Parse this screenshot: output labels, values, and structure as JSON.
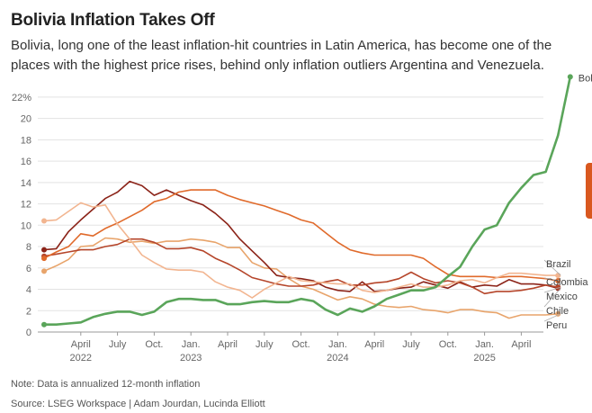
{
  "header": {
    "title": "Bolivia Inflation Takes Off",
    "subtitle": "Bolivia, long one of the least inflation-hit countries in Latin America, has become one of the places with the highest price rises, behind only inflation outliers Argentina and Venezuela."
  },
  "footer": {
    "note": "Note: Data is annualized 12-month inflation",
    "source": "Source: LSEG Workspace | Adam Jourdan, Lucinda Elliott"
  },
  "chart_data": {
    "type": "line",
    "title": "Bolivia Inflation Takes Off",
    "ylabel": "",
    "xlabel": "",
    "ylim": [
      0,
      23
    ],
    "yticks": [
      0,
      2,
      4,
      6,
      8,
      10,
      12,
      14,
      16,
      18,
      20,
      22
    ],
    "ytick_labels": [
      "0",
      "2",
      "4",
      "6",
      "8",
      "10",
      "12",
      "14",
      "16",
      "18",
      "20",
      "22%"
    ],
    "grid": true,
    "x_start": "2022-01",
    "xticks": [
      {
        "month": 3,
        "label": "April",
        "year": "2022"
      },
      {
        "month": 6,
        "label": "July",
        "year": ""
      },
      {
        "month": 9,
        "label": "Oct.",
        "year": ""
      },
      {
        "month": 12,
        "label": "Jan.",
        "year": "2023"
      },
      {
        "month": 15,
        "label": "April",
        "year": ""
      },
      {
        "month": 18,
        "label": "July",
        "year": ""
      },
      {
        "month": 21,
        "label": "Oct.",
        "year": ""
      },
      {
        "month": 24,
        "label": "Jan.",
        "year": "2024"
      },
      {
        "month": 27,
        "label": "April",
        "year": ""
      },
      {
        "month": 30,
        "label": "July",
        "year": ""
      },
      {
        "month": 33,
        "label": "Oct.",
        "year": ""
      },
      {
        "month": 36,
        "label": "Jan.",
        "year": "2025"
      },
      {
        "month": 39,
        "label": "April",
        "year": ""
      }
    ],
    "legend_placement": "right end of each line",
    "series": [
      {
        "name": "Peru",
        "color": "#e8a46b",
        "values": [
          5.7,
          6.2,
          6.8,
          8.0,
          8.1,
          8.8,
          8.7,
          8.4,
          8.5,
          8.3,
          8.5,
          8.5,
          8.7,
          8.6,
          8.4,
          7.9,
          7.9,
          6.5,
          6.0,
          5.9,
          5.0,
          4.3,
          4.0,
          3.5,
          3.0,
          3.3,
          3.1,
          2.6,
          2.4,
          2.3,
          2.4,
          2.1,
          2.0,
          1.8,
          2.1,
          2.1,
          1.9,
          1.8,
          1.3,
          1.6,
          1.6,
          1.6,
          1.7
        ]
      },
      {
        "name": "Chile",
        "color": "#8b2318",
        "values": [
          7.7,
          7.8,
          9.4,
          10.5,
          11.5,
          12.5,
          13.1,
          14.1,
          13.7,
          12.8,
          13.3,
          12.8,
          12.3,
          11.9,
          11.1,
          10.1,
          8.7,
          7.6,
          6.5,
          5.3,
          5.1,
          5.0,
          4.8,
          4.2,
          3.9,
          3.8,
          4.7,
          3.8,
          3.9,
          4.1,
          4.2,
          4.7,
          4.4,
          4.1,
          4.7,
          4.2,
          4.4,
          4.3,
          4.9,
          4.5,
          4.5,
          4.4,
          4.1
        ]
      },
      {
        "name": "Mexico",
        "color": "#b5452a",
        "values": [
          7.1,
          7.3,
          7.5,
          7.7,
          7.7,
          8.0,
          8.2,
          8.7,
          8.7,
          8.4,
          7.8,
          7.8,
          7.9,
          7.6,
          6.9,
          6.4,
          5.8,
          5.1,
          4.8,
          4.5,
          4.3,
          4.3,
          4.4,
          4.7,
          4.9,
          4.4,
          4.4,
          4.6,
          4.7,
          5.0,
          5.6,
          5.0,
          4.6,
          4.8,
          4.6,
          4.2,
          3.6,
          3.8,
          3.8,
          3.9,
          4.1,
          4.4,
          4.2
        ]
      },
      {
        "name": "Colombia",
        "color": "#e06a2b",
        "values": [
          6.9,
          7.5,
          8.0,
          9.2,
          9.0,
          9.7,
          10.2,
          10.8,
          11.4,
          12.2,
          12.5,
          13.1,
          13.3,
          13.3,
          13.3,
          12.8,
          12.4,
          12.1,
          11.8,
          11.4,
          11.0,
          10.5,
          10.2,
          9.3,
          8.4,
          7.7,
          7.4,
          7.2,
          7.2,
          7.2,
          7.2,
          6.9,
          6.1,
          5.4,
          5.2,
          5.2,
          5.2,
          5.1,
          5.2,
          5.2,
          5.1,
          5.0,
          4.8
        ]
      },
      {
        "name": "Brazil",
        "color": "#f2b590",
        "values": [
          10.4,
          10.5,
          11.3,
          12.1,
          11.7,
          11.9,
          10.1,
          8.7,
          7.2,
          6.5,
          5.9,
          5.8,
          5.8,
          5.6,
          4.7,
          4.2,
          3.9,
          3.2,
          4.0,
          4.6,
          5.2,
          4.8,
          4.7,
          4.6,
          4.5,
          4.5,
          3.9,
          3.7,
          3.9,
          4.2,
          4.5,
          4.2,
          4.2,
          4.4,
          4.8,
          4.9,
          4.6,
          5.1,
          5.5,
          5.5,
          5.4,
          5.3,
          5.3
        ]
      },
      {
        "name": "Bolivia",
        "color": "#5aa55a",
        "values": [
          0.7,
          0.7,
          0.8,
          0.9,
          1.4,
          1.7,
          1.9,
          1.9,
          1.6,
          1.9,
          2.8,
          3.1,
          3.1,
          3.0,
          3.0,
          2.6,
          2.6,
          2.8,
          2.9,
          2.8,
          2.8,
          3.1,
          2.9,
          2.1,
          1.6,
          2.2,
          1.9,
          2.4,
          3.1,
          3.5,
          3.9,
          3.9,
          4.2,
          5.2,
          6.1,
          8.0,
          9.6,
          10.0,
          12.1,
          13.5,
          14.7,
          15.0,
          18.4,
          23.9
        ]
      }
    ]
  }
}
